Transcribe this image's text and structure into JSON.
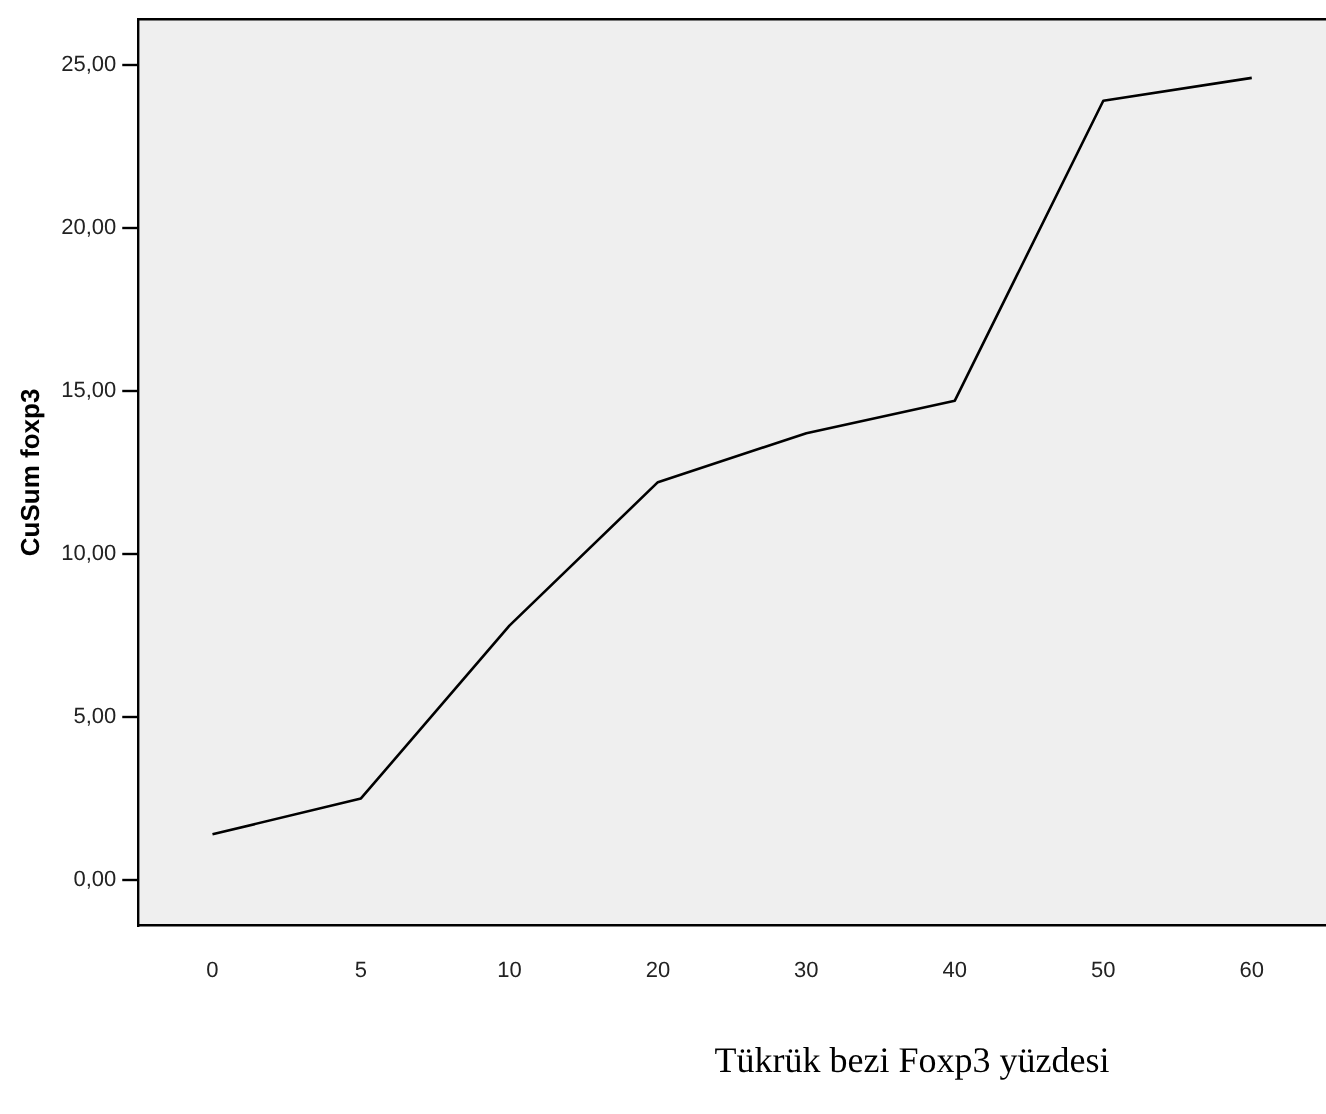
{
  "chart_data": {
    "type": "line",
    "ylabel": "CuSum foxp3",
    "xlabel": "Tükrük bezi Foxp3 yüzdesi",
    "categories": [
      "0",
      "5",
      "10",
      "20",
      "30",
      "40",
      "50",
      "60"
    ],
    "series": [
      {
        "color": "#000000",
        "values": [
          1.4,
          2.5,
          7.8,
          12.2,
          13.7,
          14.7,
          23.9,
          24.6
        ]
      }
    ],
    "ylim": [
      -1.4,
      26.4
    ],
    "yticks": [
      {
        "value": 0,
        "label": "0,00"
      },
      {
        "value": 5,
        "label": "5,00"
      },
      {
        "value": 10,
        "label": "10,00"
      },
      {
        "value": 15,
        "label": "15,00"
      },
      {
        "value": 20,
        "label": "20,00"
      },
      {
        "value": 25,
        "label": "25,00"
      }
    ],
    "grid": false,
    "legend": false,
    "marker": "none",
    "line_style": "solid"
  }
}
